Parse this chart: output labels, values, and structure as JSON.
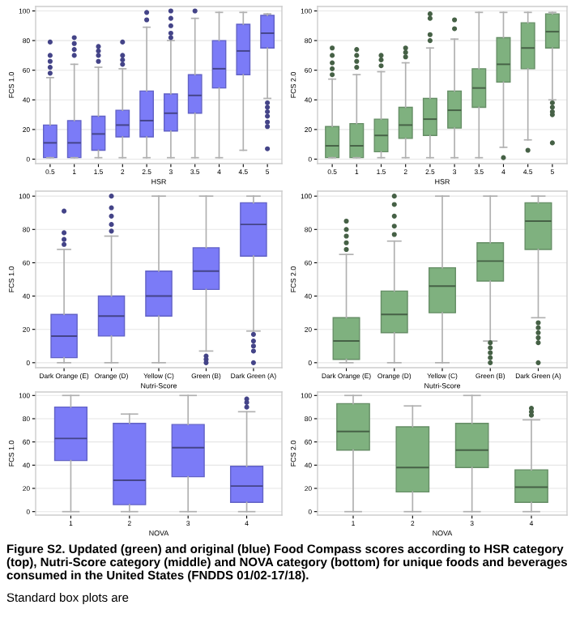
{
  "chart_data": [
    {
      "type": "box",
      "xlabel": "HSR",
      "ylabel": "FCS 1.0",
      "categories": [
        "0.5",
        "1",
        "1.5",
        "2",
        "2.5",
        "3",
        "3.5",
        "4",
        "4.5",
        "5"
      ],
      "ylim": [
        -3,
        103
      ],
      "yticks": [
        0,
        20,
        40,
        60,
        80,
        100
      ],
      "grid": "y",
      "series": [
        {
          "color": "#7b7bf7",
          "boxes": [
            {
              "low": 1,
              "q1": 1,
              "median": 11,
              "q3": 23,
              "high": 55,
              "outliers": [
                58,
                62,
                66,
                70,
                79
              ]
            },
            {
              "low": 1,
              "q1": 1,
              "median": 11,
              "q3": 26,
              "high": 64,
              "outliers": [
                70,
                74,
                78,
                82
              ]
            },
            {
              "low": 1,
              "q1": 6,
              "median": 17,
              "q3": 29,
              "high": 62,
              "outliers": [
                66,
                70,
                73,
                76
              ]
            },
            {
              "low": 1,
              "q1": 15,
              "median": 23,
              "q3": 33,
              "high": 61,
              "outliers": [
                64,
                67,
                70,
                79
              ]
            },
            {
              "low": 1,
              "q1": 15,
              "median": 26,
              "q3": 46,
              "high": 89,
              "outliers": [
                94,
                99
              ]
            },
            {
              "low": 1,
              "q1": 19,
              "median": 31,
              "q3": 44,
              "high": 80,
              "outliers": [
                82,
                85,
                90,
                95,
                100
              ]
            },
            {
              "low": 1,
              "q1": 31,
              "median": 43,
              "q3": 57,
              "high": 95,
              "outliers": [
                100
              ]
            },
            {
              "low": 1,
              "q1": 48,
              "median": 61,
              "q3": 80,
              "high": 99
            },
            {
              "low": 6,
              "q1": 57,
              "median": 73,
              "q3": 91,
              "high": 99
            },
            {
              "low": 41,
              "q1": 75,
              "median": 85,
              "q3": 97,
              "high": 98,
              "outliers": [
                38,
                35,
                32,
                29,
                25,
                22,
                7
              ]
            }
          ]
        }
      ]
    },
    {
      "type": "box",
      "xlabel": "HSR",
      "ylabel": "FCS 2.0",
      "categories": [
        "0.5",
        "1",
        "1.5",
        "2",
        "2.5",
        "3",
        "3.5",
        "4",
        "4.5",
        "5"
      ],
      "ylim": [
        -3,
        103
      ],
      "yticks": [
        0,
        20,
        40,
        60,
        80,
        100
      ],
      "grid": "y",
      "series": [
        {
          "color": "#7fb17f",
          "boxes": [
            {
              "low": 1,
              "q1": 1,
              "median": 9,
              "q3": 22,
              "high": 54,
              "outliers": [
                57,
                61,
                65,
                70,
                75
              ]
            },
            {
              "low": 1,
              "q1": 1,
              "median": 9,
              "q3": 24,
              "high": 57,
              "outliers": [
                62,
                66,
                70,
                74
              ]
            },
            {
              "low": 1,
              "q1": 5,
              "median": 16,
              "q3": 27,
              "high": 59,
              "outliers": [
                63,
                67,
                70
              ]
            },
            {
              "low": 1,
              "q1": 14,
              "median": 23,
              "q3": 35,
              "high": 65,
              "outliers": [
                69,
                72,
                75
              ]
            },
            {
              "low": 1,
              "q1": 16,
              "median": 27,
              "q3": 41,
              "high": 75,
              "outliers": [
                80,
                84,
                95,
                98
              ]
            },
            {
              "low": 1,
              "q1": 21,
              "median": 33,
              "q3": 46,
              "high": 81,
              "outliers": [
                88,
                94
              ]
            },
            {
              "low": 1,
              "q1": 35,
              "median": 48,
              "q3": 61,
              "high": 99
            },
            {
              "low": 8,
              "q1": 52,
              "median": 64,
              "q3": 82,
              "high": 99,
              "outliers": [
                1
              ]
            },
            {
              "low": 13,
              "q1": 61,
              "median": 75,
              "q3": 92,
              "high": 99,
              "outliers": [
                6
              ]
            },
            {
              "low": 40,
              "q1": 75,
              "median": 86,
              "q3": 98,
              "high": 99,
              "outliers": [
                38,
                35,
                32,
                30,
                11
              ]
            }
          ]
        }
      ]
    },
    {
      "type": "box",
      "xlabel": "Nutri-Score",
      "ylabel": "FCS 1.0",
      "categories": [
        "Dark Orange (E)",
        "Orange (D)",
        "Yellow (C)",
        "Green (B)",
        "Dark Green (A)"
      ],
      "ylim": [
        -3,
        103
      ],
      "yticks": [
        0,
        20,
        40,
        60,
        80,
        100
      ],
      "grid": "y",
      "series": [
        {
          "color": "#7b7bf7",
          "boxes": [
            {
              "low": 0,
              "q1": 3,
              "median": 16,
              "q3": 29,
              "high": 68,
              "outliers": [
                71,
                74,
                78,
                91
              ]
            },
            {
              "low": 0,
              "q1": 16,
              "median": 28,
              "q3": 40,
              "high": 76,
              "outliers": [
                79,
                83,
                88,
                93,
                100
              ]
            },
            {
              "low": 0,
              "q1": 28,
              "median": 40,
              "q3": 55,
              "high": 100
            },
            {
              "low": 7,
              "q1": 44,
              "median": 55,
              "q3": 69,
              "high": 100,
              "outliers": [
                4,
                2,
                0
              ]
            },
            {
              "low": 19,
              "q1": 64,
              "median": 83,
              "q3": 96,
              "high": 100,
              "outliers": [
                17,
                13,
                10,
                7,
                0
              ]
            }
          ]
        }
      ]
    },
    {
      "type": "box",
      "xlabel": "Nutri-Score",
      "ylabel": "FCS 2.0",
      "categories": [
        "Dark Orange (E)",
        "Orange (D)",
        "Yellow (C)",
        "Green (B)",
        "Dark Green (A)"
      ],
      "ylim": [
        -3,
        103
      ],
      "yticks": [
        0,
        20,
        40,
        60,
        80,
        100
      ],
      "grid": "y",
      "series": [
        {
          "color": "#7fb17f",
          "boxes": [
            {
              "low": 0,
              "q1": 2,
              "median": 13,
              "q3": 27,
              "high": 65,
              "outliers": [
                68,
                72,
                76,
                80,
                85
              ]
            },
            {
              "low": 0,
              "q1": 18,
              "median": 29,
              "q3": 43,
              "high": 73,
              "outliers": [
                77,
                82,
                88,
                95,
                100
              ]
            },
            {
              "low": 0,
              "q1": 30,
              "median": 46,
              "q3": 57,
              "high": 100
            },
            {
              "low": 13,
              "q1": 49,
              "median": 61,
              "q3": 72,
              "high": 100,
              "outliers": [
                12,
                9,
                6,
                3,
                0
              ]
            },
            {
              "low": 27,
              "q1": 68,
              "median": 85,
              "q3": 96,
              "high": 100,
              "outliers": [
                24,
                21,
                18,
                15,
                12,
                0
              ]
            }
          ]
        }
      ]
    },
    {
      "type": "box",
      "xlabel": "NOVA",
      "ylabel": "FCS 1.0",
      "categories": [
        "1",
        "2",
        "3",
        "4"
      ],
      "ylim": [
        -3,
        103
      ],
      "yticks": [
        0,
        20,
        40,
        60,
        80,
        100
      ],
      "grid": "y",
      "series": [
        {
          "color": "#7b7bf7",
          "boxes": [
            {
              "low": 0,
              "q1": 44,
              "median": 63,
              "q3": 90,
              "high": 100
            },
            {
              "low": 0,
              "q1": 6,
              "median": 27,
              "q3": 76,
              "high": 84
            },
            {
              "low": 0,
              "q1": 30,
              "median": 55,
              "q3": 75,
              "high": 100
            },
            {
              "low": 0,
              "q1": 8,
              "median": 22,
              "q3": 39,
              "high": 86,
              "outliers": [
                90,
                94,
                97
              ]
            }
          ]
        }
      ]
    },
    {
      "type": "box",
      "xlabel": "NOVA",
      "ylabel": "FCS 2.0",
      "categories": [
        "1",
        "2",
        "3",
        "4"
      ],
      "ylim": [
        -3,
        103
      ],
      "yticks": [
        0,
        20,
        40,
        60,
        80,
        100
      ],
      "grid": "y",
      "series": [
        {
          "color": "#7fb17f",
          "boxes": [
            {
              "low": 0,
              "q1": 53,
              "median": 69,
              "q3": 93,
              "high": 100
            },
            {
              "low": 0,
              "q1": 17,
              "median": 38,
              "q3": 73,
              "high": 91
            },
            {
              "low": 0,
              "q1": 38,
              "median": 53,
              "q3": 76,
              "high": 100
            },
            {
              "low": 0,
              "q1": 8,
              "median": 21,
              "q3": 36,
              "high": 79,
              "outliers": [
                83,
                86,
                89
              ]
            }
          ]
        }
      ],
      "annotations": [
        "Figure S2. Updated (green) and original (blue) Food Compass scores according to HSR category (top), Nutri-Score category (middle) and NOVA category (bottom) for unique foods and beverages consumed in the United States (FNDDS 01/02-17/18).",
        "Standard box plots are"
      ]
    }
  ]
}
